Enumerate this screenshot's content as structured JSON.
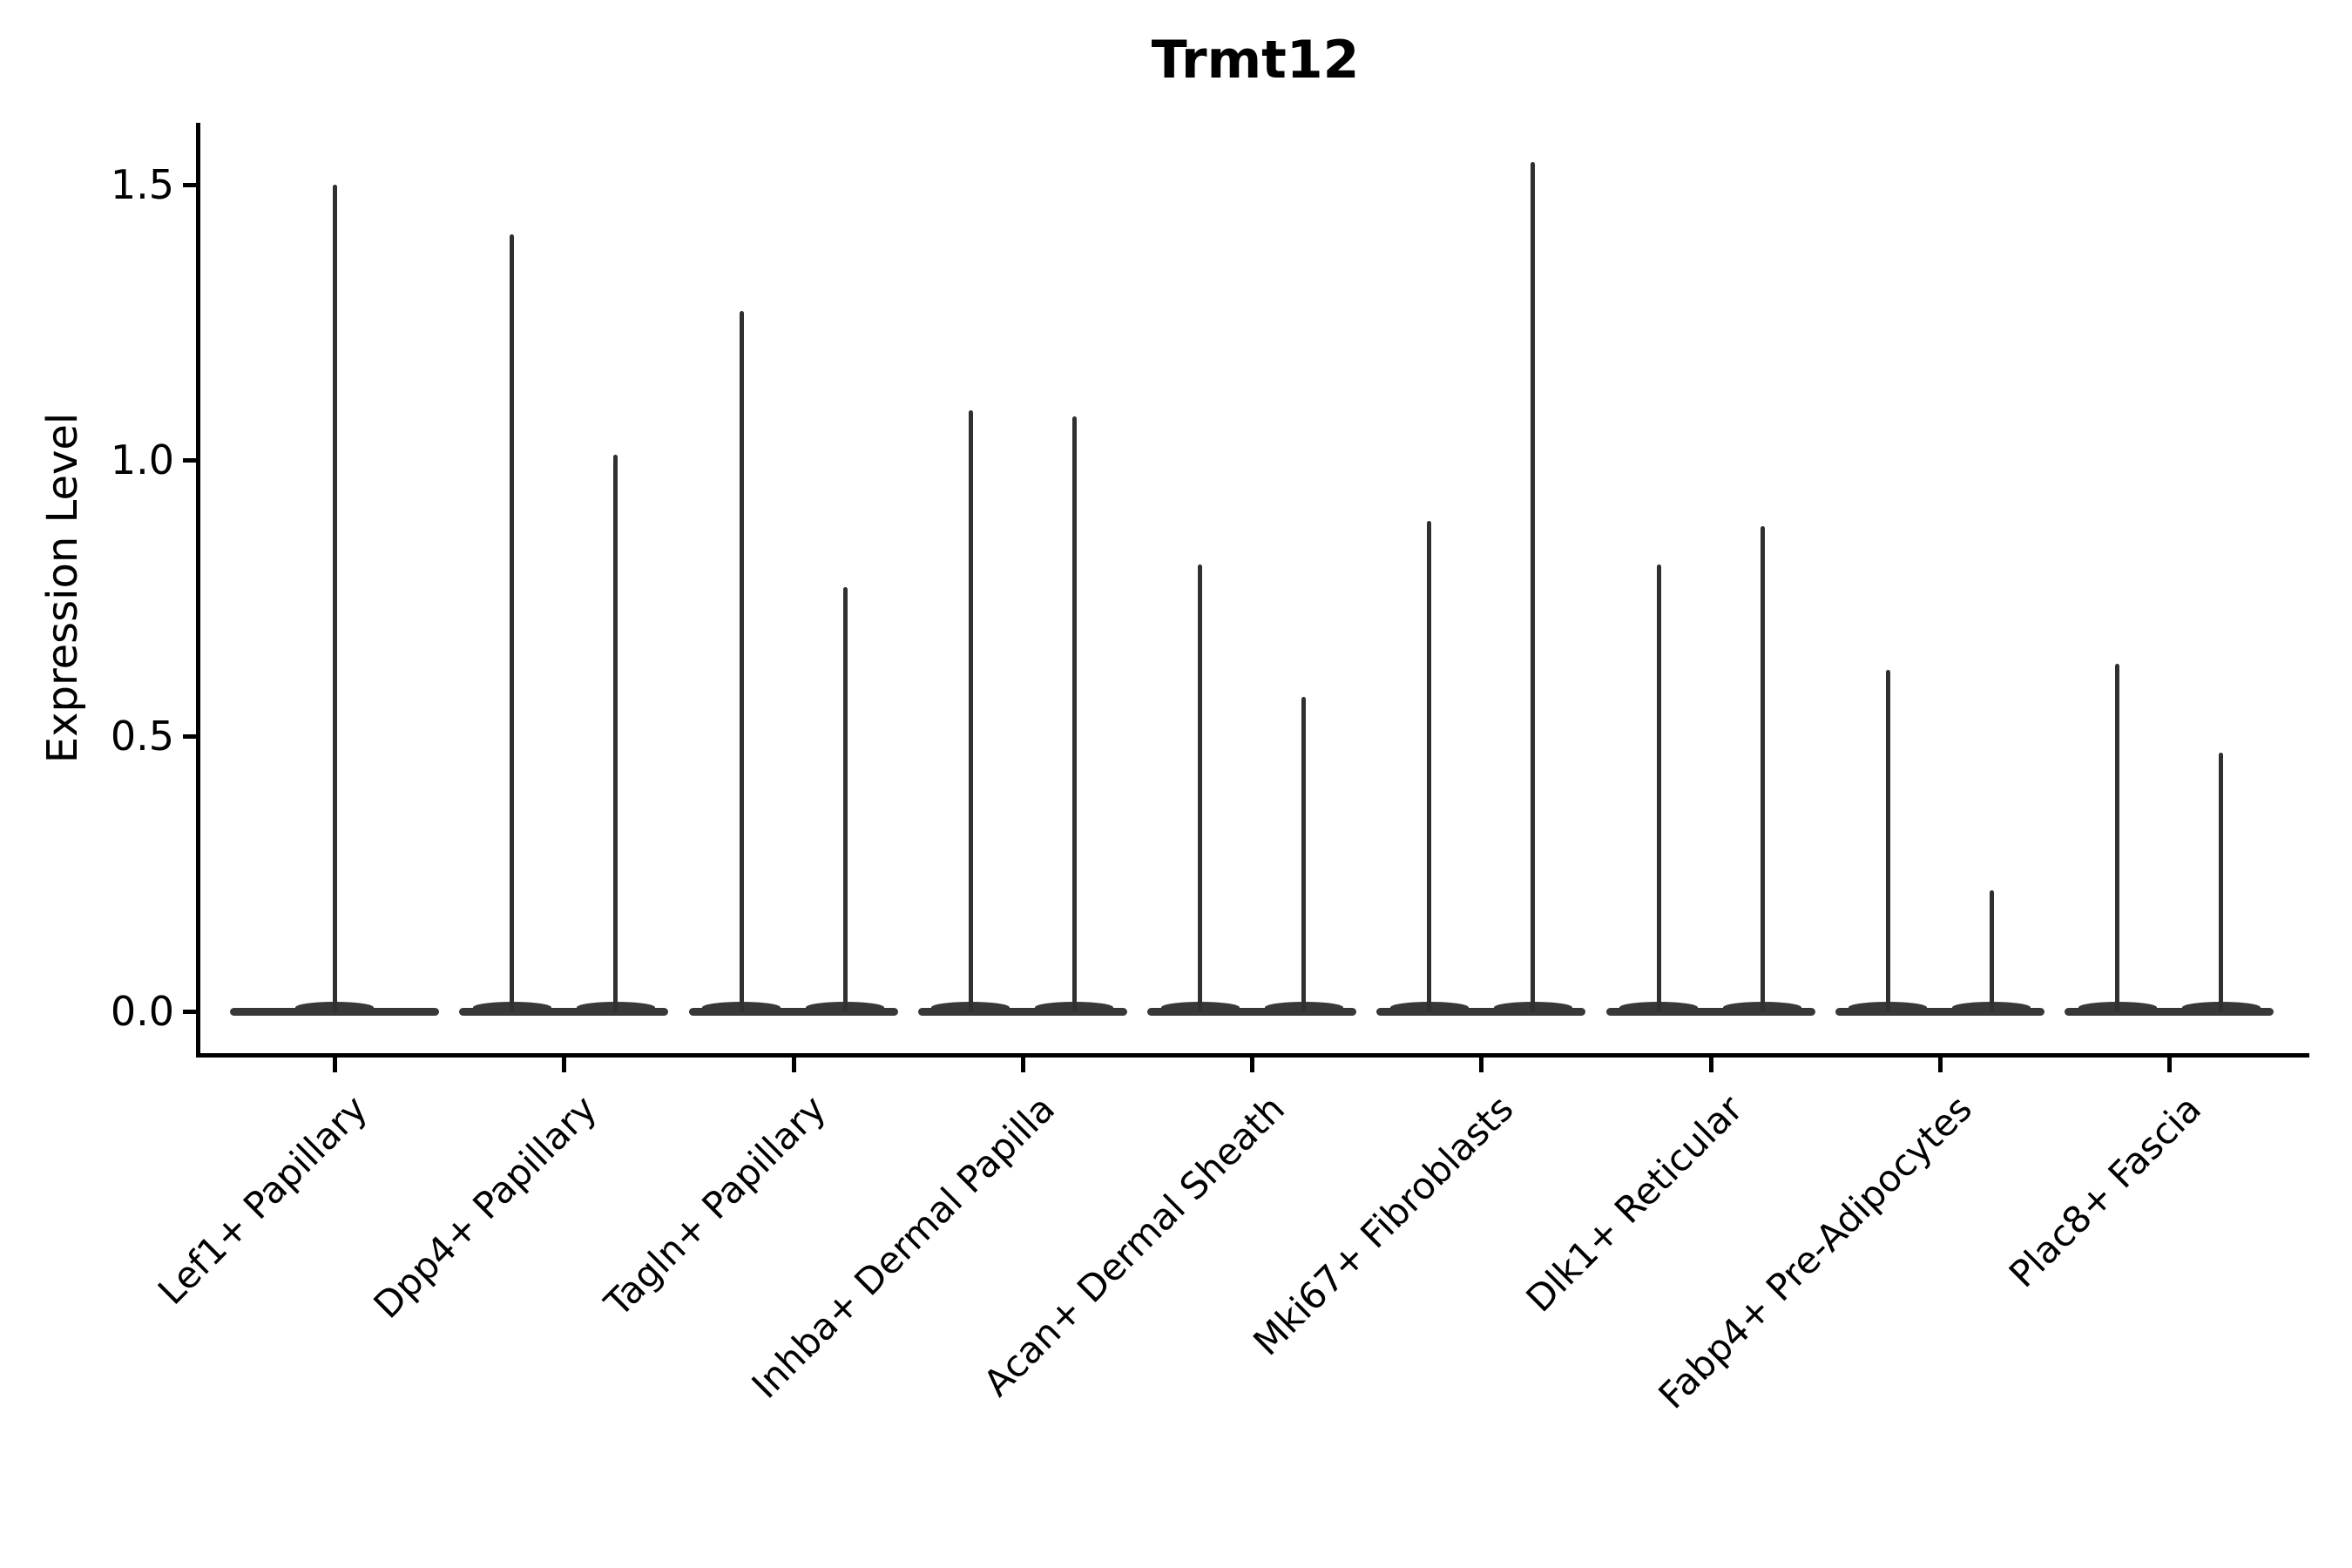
{
  "title": "Trmt12",
  "y_axis_label": "Expression Level",
  "colors": {
    "background": "#ffffff",
    "violin": "#333333",
    "axis": "#000000",
    "text": "#000000"
  },
  "chart_data": {
    "type": "violin",
    "title": "Trmt12",
    "xlabel": "",
    "ylabel": "Expression Level",
    "ylim": [
      -0.08,
      1.62
    ],
    "y_ticks": [
      0.0,
      0.5,
      1.0,
      1.5
    ],
    "y_tick_labels": [
      "0.0",
      "0.5",
      "1.0",
      "1.5"
    ],
    "grid": false,
    "legend": "none",
    "categories": [
      "Lef1+ Papillary",
      "Dpp4+ Papillary",
      "Tagln+ Papillary",
      "Inhba+ Dermal Papilla",
      "Acan+ Dermal Sheath",
      "Mki67+ Fibroblasts",
      "Dlk1+ Reticular",
      "Fabp4+ Pre-Adipocytes",
      "Plac8+ Fascia"
    ],
    "violins": [
      {
        "category": "Lef1+ Papillary",
        "baseline_value": 0.0,
        "spike_max_values": [
          1.5
        ]
      },
      {
        "category": "Dpp4+ Papillary",
        "baseline_value": 0.0,
        "spike_max_values": [
          1.41,
          1.01
        ]
      },
      {
        "category": "Tagln+ Papillary",
        "baseline_value": 0.0,
        "spike_max_values": [
          1.27,
          0.77
        ]
      },
      {
        "category": "Inhba+ Dermal Papilla",
        "baseline_value": 0.0,
        "spike_max_values": [
          1.09,
          1.08
        ]
      },
      {
        "category": "Acan+ Dermal Sheath",
        "baseline_value": 0.0,
        "spike_max_values": [
          0.81,
          0.57
        ]
      },
      {
        "category": "Mki67+ Fibroblasts",
        "baseline_value": 0.0,
        "spike_max_values": [
          0.89,
          1.54
        ]
      },
      {
        "category": "Dlk1+ Reticular",
        "baseline_value": 0.0,
        "spike_max_values": [
          0.81,
          0.88
        ]
      },
      {
        "category": "Fabp4+ Pre-Adipocytes",
        "baseline_value": 0.0,
        "spike_max_values": [
          0.62,
          0.22
        ]
      },
      {
        "category": "Plac8+ Fascia",
        "baseline_value": 0.0,
        "spike_max_values": [
          0.63,
          0.47
        ]
      }
    ]
  }
}
